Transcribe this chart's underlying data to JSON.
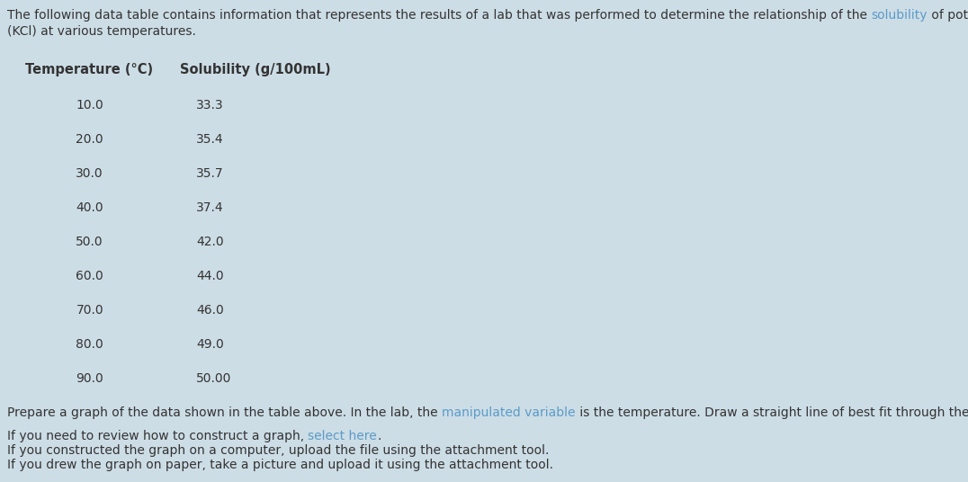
{
  "background_color": "#cddde6",
  "temperatures": [
    10.0,
    20.0,
    30.0,
    40.0,
    50.0,
    60.0,
    70.0,
    80.0,
    90.0
  ],
  "solubilities": [
    "33.3",
    "35.4",
    "35.7",
    "37.4",
    "42.0",
    "44.0",
    "46.0",
    "49.0",
    "50.00"
  ],
  "link_color": "#5b9bc8",
  "text_color": "#333333",
  "main_font_size": 10.0,
  "bold_font_size": 10.5
}
